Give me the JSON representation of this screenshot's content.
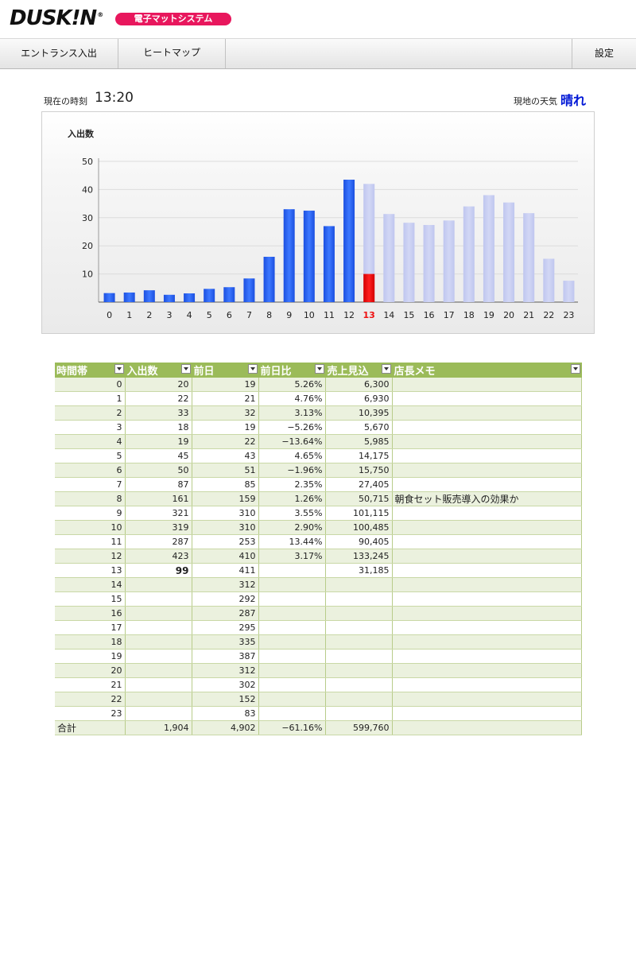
{
  "header": {
    "logo": "DUSK!N",
    "logo_reg": "®",
    "system_name": "電子マットシステム"
  },
  "nav": {
    "entrance": "エントランス入出",
    "heatmap": "ヒートマップ",
    "settings": "設定"
  },
  "info": {
    "time_label": "現在の時刻",
    "time_value": "13:20",
    "weather_label": "現地の天気",
    "weather_value": "晴れ"
  },
  "colors": {
    "actual_bar": "#2a64f5",
    "forecast_bar": "#c7cdf0",
    "current_bar_actual": "#ee1010",
    "current_hour_label": "#ee1010",
    "table_header": "#9bbb59",
    "table_stripe": "#ebf1de"
  },
  "chart_data": {
    "type": "bar",
    "ylabel": "入出数",
    "ylim": [
      0,
      50
    ],
    "yticks": [
      10,
      20,
      30,
      40,
      50
    ],
    "categories": [
      "0",
      "1",
      "2",
      "3",
      "4",
      "5",
      "6",
      "7",
      "8",
      "9",
      "10",
      "11",
      "12",
      "13",
      "14",
      "15",
      "16",
      "17",
      "18",
      "19",
      "20",
      "21",
      "22",
      "23"
    ],
    "current_hour": "13",
    "series": [
      {
        "values": [
          3.2,
          3.4,
          4.2,
          2.6,
          3.1,
          4.7,
          5.3,
          8.4,
          16.1,
          33.0,
          32.5,
          27.0,
          43.5,
          10.0,
          null,
          null,
          null,
          null,
          null,
          null,
          null,
          null,
          null,
          null
        ]
      },
      {
        "values": [
          null,
          null,
          null,
          null,
          null,
          null,
          null,
          null,
          null,
          null,
          null,
          null,
          null,
          42.0,
          31.3,
          28.2,
          27.4,
          29.0,
          34.0,
          38.0,
          35.4,
          31.6,
          15.4,
          7.6
        ]
      }
    ]
  },
  "table": {
    "headers": [
      "時間帯",
      "入出数",
      "前日",
      "前日比",
      "売上見込",
      "店長メモ"
    ],
    "rows": [
      [
        "0",
        "20",
        "19",
        "5.26%",
        "6,300",
        ""
      ],
      [
        "1",
        "22",
        "21",
        "4.76%",
        "6,930",
        ""
      ],
      [
        "2",
        "33",
        "32",
        "3.13%",
        "10,395",
        ""
      ],
      [
        "3",
        "18",
        "19",
        "−5.26%",
        "5,670",
        ""
      ],
      [
        "4",
        "19",
        "22",
        "−13.64%",
        "5,985",
        ""
      ],
      [
        "5",
        "45",
        "43",
        "4.65%",
        "14,175",
        ""
      ],
      [
        "6",
        "50",
        "51",
        "−1.96%",
        "15,750",
        ""
      ],
      [
        "7",
        "87",
        "85",
        "2.35%",
        "27,405",
        ""
      ],
      [
        "8",
        "161",
        "159",
        "1.26%",
        "50,715",
        "朝食セット販売導入の効果か"
      ],
      [
        "9",
        "321",
        "310",
        "3.55%",
        "101,115",
        ""
      ],
      [
        "10",
        "319",
        "310",
        "2.90%",
        "100,485",
        ""
      ],
      [
        "11",
        "287",
        "253",
        "13.44%",
        "90,405",
        ""
      ],
      [
        "12",
        "423",
        "410",
        "3.17%",
        "133,245",
        ""
      ],
      [
        "13",
        "99",
        "411",
        "",
        "31,185",
        ""
      ],
      [
        "14",
        "",
        "312",
        "",
        "",
        ""
      ],
      [
        "15",
        "",
        "292",
        "",
        "",
        ""
      ],
      [
        "16",
        "",
        "287",
        "",
        "",
        ""
      ],
      [
        "17",
        "",
        "295",
        "",
        "",
        ""
      ],
      [
        "18",
        "",
        "335",
        "",
        "",
        ""
      ],
      [
        "19",
        "",
        "387",
        "",
        "",
        ""
      ],
      [
        "20",
        "",
        "312",
        "",
        "",
        ""
      ],
      [
        "21",
        "",
        "302",
        "",
        "",
        ""
      ],
      [
        "22",
        "",
        "152",
        "",
        "",
        ""
      ],
      [
        "23",
        "",
        "83",
        "",
        "",
        ""
      ]
    ],
    "total": [
      "合計",
      "1,904",
      "4,902",
      "−61.16%",
      "599,760",
      ""
    ]
  }
}
